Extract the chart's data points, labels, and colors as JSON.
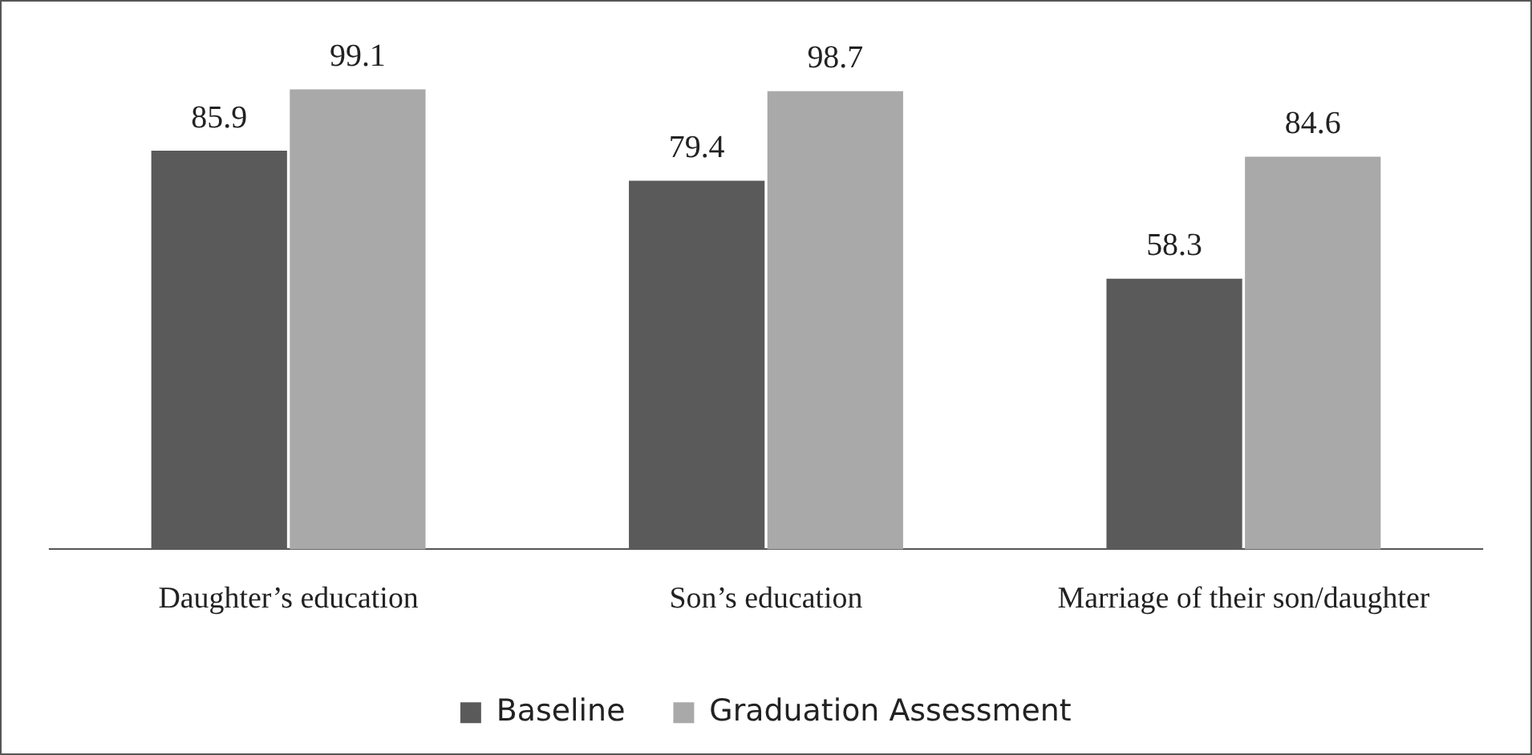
{
  "chart_data": {
    "type": "bar",
    "categories": [
      "Daughter’s education",
      "Son’s education",
      "Marriage of their son/daughter"
    ],
    "series": [
      {
        "name": "Baseline",
        "color": "#5a5a5a",
        "values": [
          85.9,
          79.4,
          58.3
        ]
      },
      {
        "name": "Graduation Assessment",
        "color": "#a9a9a9",
        "values": [
          99.1,
          98.7,
          84.6
        ]
      }
    ],
    "ylim": [
      0,
      118
    ],
    "data_labels": true,
    "grid": false,
    "legend": "bottom",
    "tick_labels": "x"
  }
}
